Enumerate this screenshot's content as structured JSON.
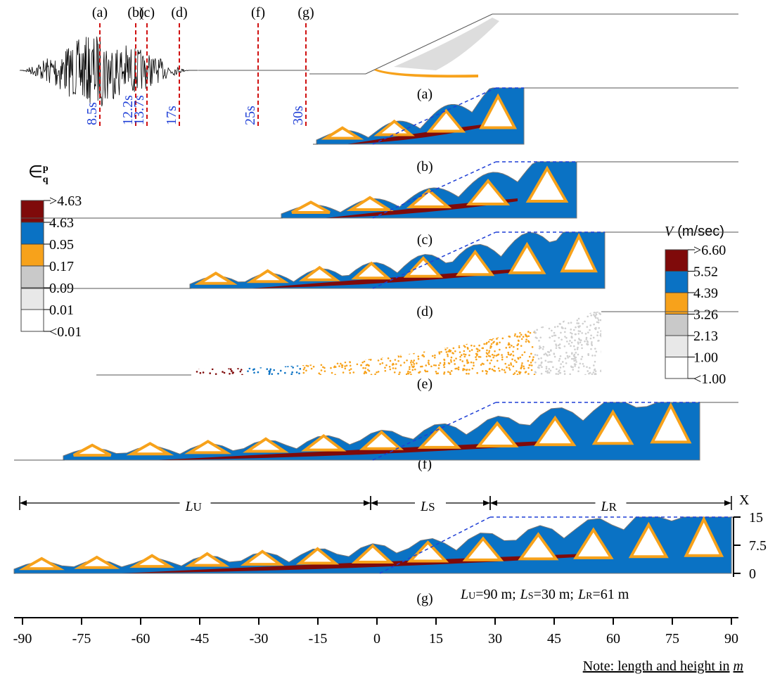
{
  "timeline": {
    "markers": [
      {
        "label": "(a)",
        "time": "8.5s"
      },
      {
        "label": "(b)",
        "time": "12.2s"
      },
      {
        "label": "(c)",
        "time": "13.7s"
      },
      {
        "label": "(d)",
        "time": "17s"
      },
      {
        "label": "(f)",
        "time": "25s"
      },
      {
        "label": "(g)",
        "time": "30s"
      }
    ]
  },
  "strain_legend": {
    "symbol": "∈",
    "sup": "p",
    "sub": "q",
    "levels": [
      {
        "label": ">4.63",
        "color": "#7f0a0a"
      },
      {
        "label": "4.63",
        "color": "#0a72c4"
      },
      {
        "label": "0.95",
        "color": "#f7a21b"
      },
      {
        "label": "0.17",
        "color": "#c9c9c9"
      },
      {
        "label": "0.09",
        "color": "#e8e8e8"
      },
      {
        "label": "0.01",
        "color": "#ffffff"
      },
      {
        "label": "<0.01"
      }
    ]
  },
  "velocity_legend": {
    "variable": "V",
    "unit": "(m/sec)",
    "levels": [
      {
        "label": ">6.60",
        "color": "#7f0a0a"
      },
      {
        "label": "5.52",
        "color": "#0a72c4"
      },
      {
        "label": "4.39",
        "color": "#f7a21b"
      },
      {
        "label": "3.26",
        "color": "#c9c9c9"
      },
      {
        "label": "2.13",
        "color": "#e8e8e8"
      },
      {
        "label": "1.00",
        "color": "#ffffff"
      },
      {
        "label": "<1.00"
      }
    ]
  },
  "panels": [
    "(a)",
    "(b)",
    "(c)",
    "(d)",
    "(e)",
    "(f)",
    "(g)"
  ],
  "lengths": [
    {
      "main": "L",
      "sub": "U"
    },
    {
      "main": "L",
      "sub": "S"
    },
    {
      "main": "L",
      "sub": "R"
    }
  ],
  "length_summary": [
    {
      "main": "L",
      "sub": "U",
      "rest": "=90 m;"
    },
    {
      "main": "L",
      "sub": "S",
      "rest": "=30 m;"
    },
    {
      "main": "L",
      "sub": "R",
      "rest": "=61 m"
    }
  ],
  "x_axis": {
    "ticks": [
      -90,
      -75,
      -60,
      -45,
      -30,
      -15,
      0,
      15,
      30,
      45,
      60,
      75,
      90
    ]
  },
  "height_axis": {
    "label": "X",
    "ticks": [
      0,
      7.5,
      15
    ]
  },
  "note": {
    "text": "Note: length and height in",
    "unit": "m"
  }
}
